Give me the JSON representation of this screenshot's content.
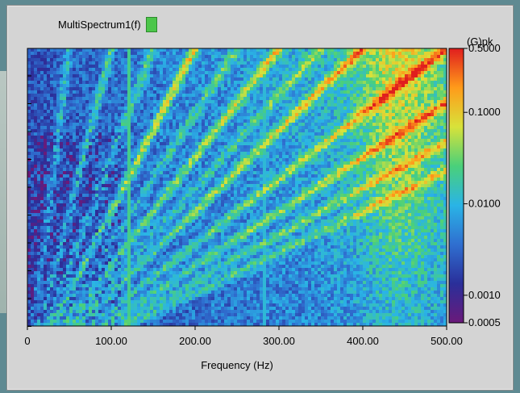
{
  "chart_data": {
    "type": "heatmap",
    "title": "",
    "legend": {
      "label": "MultiSpectrum1(f)",
      "color": "#4cc64a"
    },
    "xlabel": "Frequency (Hz)",
    "xlim": [
      0,
      500
    ],
    "x_ticks": [
      "0",
      "100.00",
      "200.00",
      "300.00",
      "400.00",
      "500.00"
    ],
    "x_tick_values": [
      0,
      100,
      200,
      300,
      400,
      500
    ],
    "colorbar": {
      "unit": "(G)pk",
      "scale": "log",
      "range": [
        0.0005,
        0.5
      ],
      "ticks": [
        "0.5000",
        "0.1000",
        "0.0100",
        "0.0010",
        "0.0005"
      ],
      "tick_values": [
        0.5,
        0.1,
        0.01,
        0.001,
        0.0005
      ],
      "colormap": [
        "#6a1a7a",
        "#2a2f9a",
        "#2f6fd0",
        "#2ab4e6",
        "#4ad07a",
        "#d8e23a",
        "#ff9b1a",
        "#e01e1e"
      ]
    }
  }
}
